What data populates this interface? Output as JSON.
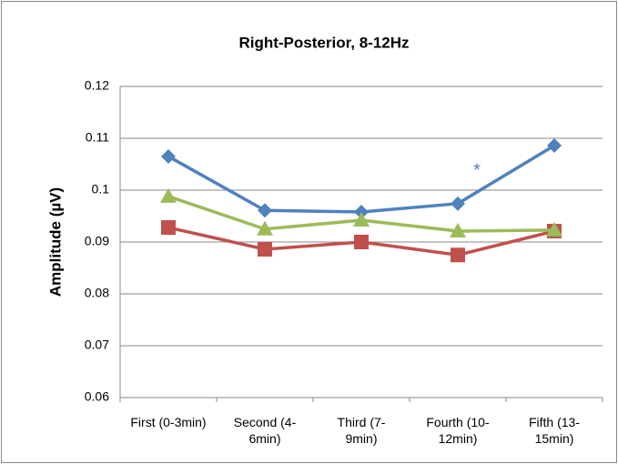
{
  "chart_data": {
    "type": "line",
    "title": "Right-Posterior, 8-12Hz",
    "y_label": "Amplitude (µV)",
    "categories": [
      "First (0-3min)",
      "Second (4-6min)",
      "Third (7-9min)",
      "Fourth (10-12min)",
      "Fifth (13-15min)"
    ],
    "series": [
      {
        "color": "#4f81bd",
        "marker": "diamond",
        "values": [
          0.1065,
          0.0961,
          0.0958,
          0.0974,
          0.1086
        ]
      },
      {
        "color": "#c0504d",
        "marker": "square",
        "values": [
          0.0928,
          0.0886,
          0.09,
          0.0875,
          0.0921
        ]
      },
      {
        "color": "#9bbb59",
        "marker": "triangle",
        "values": [
          0.0988,
          0.0925,
          0.0942,
          0.0921,
          0.0923
        ]
      }
    ],
    "annotation": "*",
    "ylim": [
      0.06,
      0.12
    ],
    "yticks": [
      0.06,
      0.07,
      0.08,
      0.09,
      0.1,
      0.11,
      0.12
    ],
    "grid": true
  }
}
